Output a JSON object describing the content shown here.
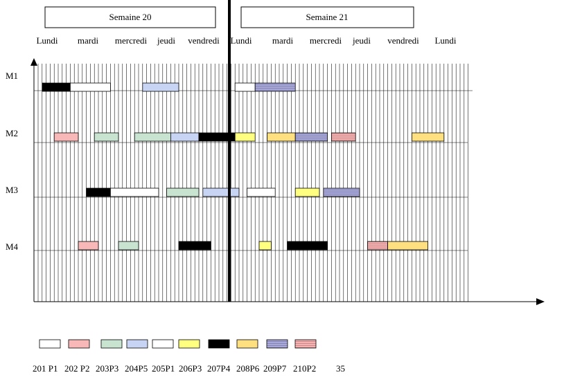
{
  "weeks": [
    "Semaine 20",
    "Semaine 21"
  ],
  "days": [
    "Lundi",
    "mardi",
    "mercredi",
    "jeudi",
    "vendredi",
    "Lundi",
    "mardi",
    "mercredi",
    "jeudi",
    "vendredi",
    "Lundi"
  ],
  "machines": [
    "M1",
    "M2",
    "M3",
    "M4"
  ],
  "legend": {
    "items": [
      {
        "label": "201 P1",
        "color": "#ffffff",
        "pattern": "plain"
      },
      {
        "label": "202 P2",
        "color": "#f8b8b8",
        "pattern": "plain"
      },
      {
        "label": "203P3",
        "color": "#c8e4d0",
        "pattern": "plain"
      },
      {
        "label": "204P5",
        "color": "#c8d4f4",
        "pattern": "plain"
      },
      {
        "label": "205P1",
        "color": "#ffffff",
        "pattern": "plain"
      },
      {
        "label": "206P3",
        "color": "#ffff80",
        "pattern": "plain"
      },
      {
        "label": "207P4",
        "color": "#000000",
        "pattern": "plain"
      },
      {
        "label": "208P6",
        "color": "#ffe080",
        "pattern": "plain"
      },
      {
        "label": "209P7",
        "color": "#a8a8dc",
        "pattern": "hstripe"
      },
      {
        "label": "210P2",
        "color": "#f8b0b0",
        "pattern": "hstripe"
      }
    ],
    "trailing_number": "35"
  },
  "tasks": [
    {
      "machine": 0,
      "item": 6,
      "start": 1,
      "len": 7
    },
    {
      "machine": 0,
      "item": 0,
      "start": 8,
      "len": 10
    },
    {
      "machine": 0,
      "item": 3,
      "start": 26,
      "len": 9
    },
    {
      "machine": 0,
      "item": 4,
      "start": 49,
      "len": 5
    },
    {
      "machine": 0,
      "item": 8,
      "start": 54,
      "len": 10
    },
    {
      "machine": 1,
      "item": 1,
      "start": 4,
      "len": 6
    },
    {
      "machine": 1,
      "item": 2,
      "start": 14,
      "len": 6
    },
    {
      "machine": 1,
      "item": 2,
      "start": 24,
      "len": 9
    },
    {
      "machine": 1,
      "item": 3,
      "start": 33,
      "len": 7
    },
    {
      "machine": 1,
      "item": 6,
      "start": 40,
      "len": 9
    },
    {
      "machine": 1,
      "item": 5,
      "start": 49,
      "len": 5
    },
    {
      "machine": 1,
      "item": 7,
      "start": 57,
      "len": 7
    },
    {
      "machine": 1,
      "item": 8,
      "start": 64,
      "len": 8
    },
    {
      "machine": 1,
      "item": 9,
      "start": 73,
      "len": 6
    },
    {
      "machine": 1,
      "item": 7,
      "start": 93,
      "len": 8
    },
    {
      "machine": 2,
      "item": 6,
      "start": 12,
      "len": 6
    },
    {
      "machine": 2,
      "item": 0,
      "start": 18,
      "len": 12
    },
    {
      "machine": 2,
      "item": 2,
      "start": 32,
      "len": 8
    },
    {
      "machine": 2,
      "item": 3,
      "start": 41,
      "len": 9
    },
    {
      "machine": 2,
      "item": 4,
      "start": 52,
      "len": 7
    },
    {
      "machine": 2,
      "item": 5,
      "start": 64,
      "len": 6
    },
    {
      "machine": 2,
      "item": 8,
      "start": 71,
      "len": 9
    },
    {
      "machine": 3,
      "item": 1,
      "start": 10,
      "len": 5
    },
    {
      "machine": 3,
      "item": 2,
      "start": 20,
      "len": 5
    },
    {
      "machine": 3,
      "item": 6,
      "start": 35,
      "len": 8
    },
    {
      "machine": 3,
      "item": 5,
      "start": 55,
      "len": 3
    },
    {
      "machine": 3,
      "item": 6,
      "start": 62,
      "len": 10
    },
    {
      "machine": 3,
      "item": 9,
      "start": 82,
      "len": 5
    },
    {
      "machine": 3,
      "item": 7,
      "start": 87,
      "len": 10
    }
  ]
}
